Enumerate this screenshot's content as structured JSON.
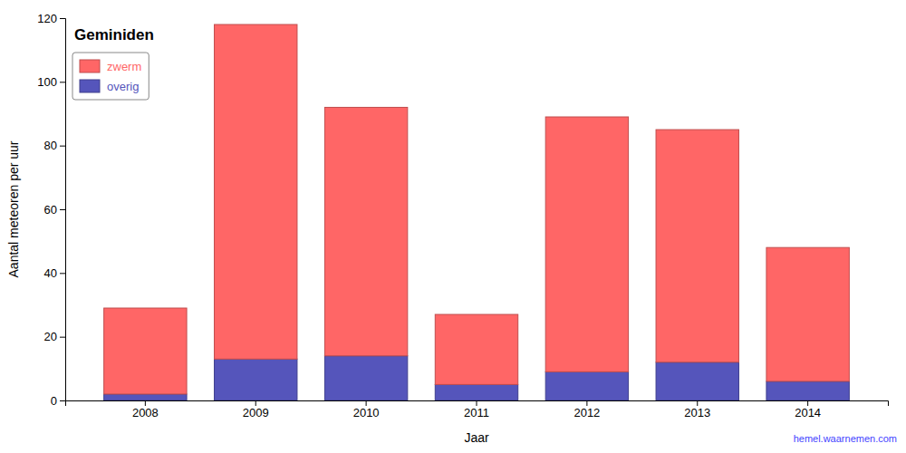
{
  "chart_data": {
    "type": "bar",
    "stacked": true,
    "title": "Geminiden",
    "x_label": "Jaar",
    "y_label": "Aantal meteoren per uur",
    "categories": [
      "2008",
      "2009",
      "2010",
      "2011",
      "2012",
      "2013",
      "2014"
    ],
    "series": [
      {
        "name": "overig",
        "color": "#5555BB",
        "values": [
          2,
          13,
          14,
          5,
          9,
          12,
          6
        ]
      },
      {
        "name": "zwerm",
        "color": "#FF6666",
        "values": [
          27,
          105,
          78,
          22,
          80,
          73,
          42
        ]
      }
    ],
    "ylim": [
      0,
      120
    ],
    "yticks": [
      0,
      20,
      40,
      60,
      80,
      100,
      120
    ],
    "grid": false,
    "legend": "upper left",
    "annotations": [
      {
        "text": "hemel.waarnemen.com",
        "color": "#4444FF"
      }
    ]
  }
}
